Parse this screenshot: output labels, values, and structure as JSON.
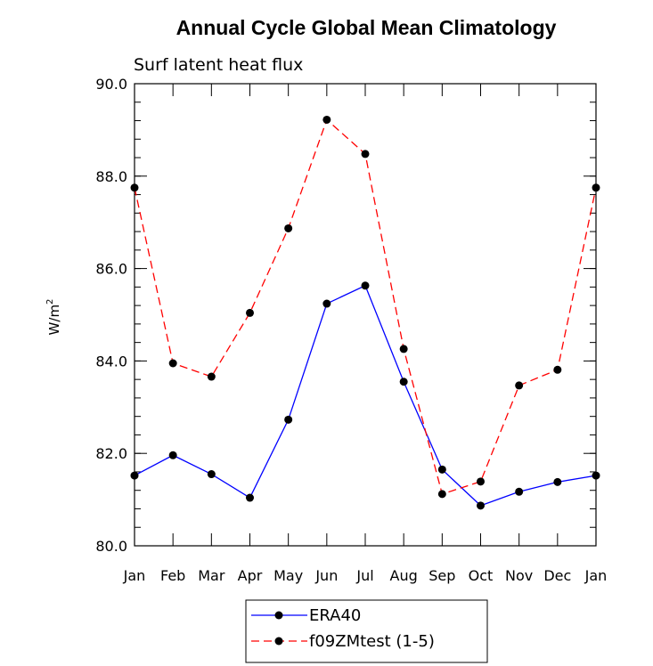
{
  "chart_data": {
    "type": "line",
    "title": "Annual Cycle Global Mean Climatology",
    "subtitle": "Surf latent heat flux",
    "ylabel": "W/m",
    "ylabel_superscript": "2",
    "xlabel": "",
    "ylim": [
      80.0,
      90.0
    ],
    "yticks": [
      80.0,
      82.0,
      84.0,
      86.0,
      88.0,
      90.0
    ],
    "ytick_labels": [
      "80.0",
      "82.0",
      "84.0",
      "86.0",
      "88.0",
      "90.0"
    ],
    "categories": [
      "Jan",
      "Feb",
      "Mar",
      "Apr",
      "May",
      "Jun",
      "Jul",
      "Aug",
      "Sep",
      "Oct",
      "Nov",
      "Dec",
      "Jan"
    ],
    "series": [
      {
        "name": "ERA40",
        "color": "#0000ff",
        "dash": "solid",
        "values": [
          81.52,
          81.96,
          81.55,
          81.04,
          82.73,
          85.24,
          85.63,
          83.55,
          81.65,
          80.87,
          81.17,
          81.38,
          81.52
        ]
      },
      {
        "name": "f09ZMtest (1-5)",
        "color": "#ff0000",
        "dash": "dashed",
        "values": [
          87.75,
          83.95,
          83.66,
          85.04,
          86.87,
          89.22,
          88.48,
          84.26,
          81.12,
          81.39,
          83.47,
          83.81,
          87.75
        ]
      }
    ],
    "legend_position": "bottom-center",
    "grid": false
  }
}
